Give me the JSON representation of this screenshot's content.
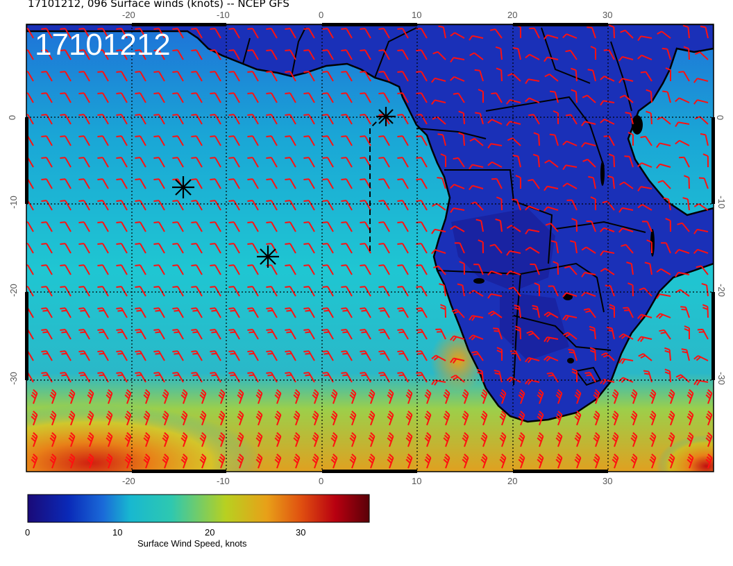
{
  "title": "17101212, 096 Surface winds (knots) -- NCEP GFS",
  "stamp": "17101212",
  "colorbar": {
    "label": "Surface Wind Speed, knots",
    "ticks": [
      "0",
      "10",
      "20",
      "30"
    ],
    "stops": [
      "#1a0a78",
      "#0a2ab8",
      "#1a6ad8",
      "#18b8d0",
      "#2ec8b0",
      "#b8d020",
      "#e8a018",
      "#e05010",
      "#b80010",
      "#5a0008"
    ]
  },
  "axes": {
    "lon_ticks": [
      "-20",
      "-10",
      "0",
      "10",
      "20",
      "30"
    ],
    "lat_ticks": [
      "0",
      "-10",
      "-20",
      "-30"
    ]
  },
  "colors": {
    "barb": "#ff1010",
    "coast": "#000000",
    "grid": "#000000"
  },
  "markers": {
    "symbol": "star-asterisk",
    "count": 3
  }
}
